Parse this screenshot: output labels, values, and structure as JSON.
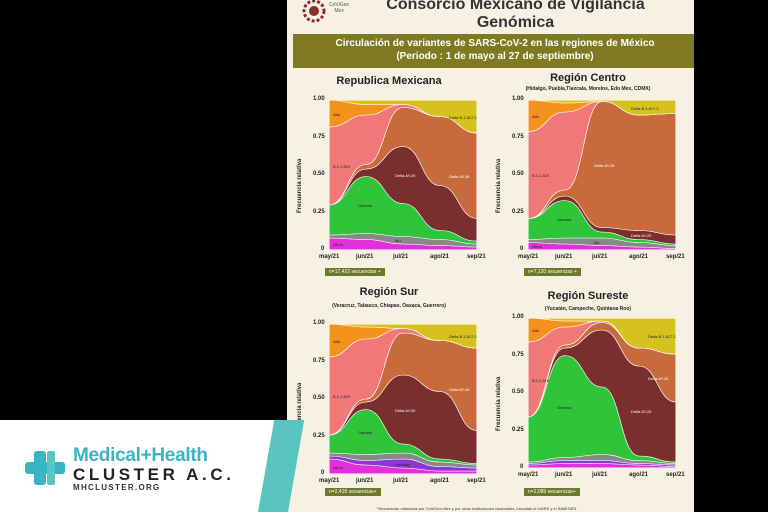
{
  "header": {
    "title_line1": "Consorcio Mexicano de Vigilancia",
    "title_line2": "Genómica",
    "logo_text": [
      "CoViGen",
      "Mex"
    ]
  },
  "subtitle": {
    "line1": "Circulación de variantes de SARS-CoV-2 en las regiones de México",
    "line2": "(Periodo : 1 de mayo al 27 de septiembre)"
  },
  "axis": {
    "ylabel": "Frecuencia relativa",
    "yticks": [
      "1.00",
      "0.75",
      "0.50",
      "0.25",
      "0"
    ],
    "xticks": [
      "may/21",
      "jun/21",
      "jul/21",
      "ago/21",
      "sep/21"
    ]
  },
  "panels": [
    {
      "title": "Republica Mexicana",
      "subtitle": "",
      "n": "n=17,422 secuencias +"
    },
    {
      "title": "Región Centro",
      "subtitle": "(Hidalgo, Puebla,Tlaxcala, Morelos, Edo Mex, CDMX)",
      "n": "n=7,120 secuencias +"
    },
    {
      "title": "Región Sur",
      "subtitle": "(Veracruz, Tabasco, Chiapas, Oaxaca, Guerrero)",
      "n": "n=2,418 secuencias+"
    },
    {
      "title": "Región Sureste",
      "subtitle": "(Yucatán, Campeche, Quintana Roo)",
      "n": "n=2,089 secuencias+"
    }
  ],
  "series_labels": {
    "alfa": "Alfa",
    "b11519": "B.1.1.519",
    "gamma": "Gamma",
    "mu": "Mu",
    "delta_ay20": "Delta AY.20",
    "delta_ay26": "Delta AY.26",
    "delta_b16172": "Delta B.1.617.2",
    "otros": "Otros",
    "lambda": "Lambda"
  },
  "footnote": "*Secuencias obtenidas por CoViGen-Mex y por otras Instituciones nacionales, incluidas el InDRE y el INMEGEN",
  "colors": {
    "otros": "#e22fd8",
    "mu": "#888888",
    "gamma": "#2fc43a",
    "delta_ay20": "#7a2e2e",
    "delta_ay26": "#c96a3c",
    "b11519": "#f07878",
    "alfa": "#f5921e",
    "delta_b16172": "#d6c21e",
    "lambda": "#8a37d6",
    "brand": "#3ab3c4"
  },
  "chart_data": [
    {
      "type": "area",
      "title": "Republica Mexicana",
      "x": [
        "may/21",
        "jun/21",
        "jul/21",
        "ago/21",
        "sep/21"
      ],
      "ylim": [
        0,
        1
      ],
      "series": [
        {
          "name": "Otros",
          "values": [
            0.08,
            0.07,
            0.04,
            0.03,
            0.02
          ]
        },
        {
          "name": "Mu",
          "values": [
            0.02,
            0.04,
            0.05,
            0.04,
            0.02
          ]
        },
        {
          "name": "Gamma",
          "values": [
            0.2,
            0.38,
            0.22,
            0.06,
            0.02
          ]
        },
        {
          "name": "Delta AY.20",
          "values": [
            0.0,
            0.05,
            0.38,
            0.3,
            0.15
          ]
        },
        {
          "name": "Delta AY.26",
          "values": [
            0.0,
            0.03,
            0.26,
            0.46,
            0.57
          ]
        },
        {
          "name": "B.1.1.519",
          "values": [
            0.52,
            0.33,
            0.02,
            0.0,
            0.0
          ]
        },
        {
          "name": "Alfa",
          "values": [
            0.18,
            0.07,
            0.0,
            0.0,
            0.0
          ]
        },
        {
          "name": "Delta B.1.617.2",
          "values": [
            0.0,
            0.03,
            0.03,
            0.11,
            0.22
          ]
        }
      ]
    },
    {
      "type": "area",
      "title": "Región Centro",
      "x": [
        "may/21",
        "jun/21",
        "jul/21",
        "ago/21",
        "sep/21"
      ],
      "ylim": [
        0,
        1
      ],
      "series": [
        {
          "name": "Otros",
          "values": [
            0.05,
            0.04,
            0.03,
            0.02,
            0.01
          ]
        },
        {
          "name": "Mu",
          "values": [
            0.02,
            0.04,
            0.05,
            0.03,
            0.02
          ]
        },
        {
          "name": "Gamma",
          "values": [
            0.14,
            0.25,
            0.04,
            0.02,
            0.01
          ]
        },
        {
          "name": "Delta AY.20",
          "values": [
            0.0,
            0.03,
            0.03,
            0.06,
            0.06
          ]
        },
        {
          "name": "Delta AY.26",
          "values": [
            0.0,
            0.04,
            0.84,
            0.77,
            0.81
          ]
        },
        {
          "name": "B.1.1.519",
          "values": [
            0.58,
            0.52,
            0.0,
            0.0,
            0.0
          ]
        },
        {
          "name": "Alfa",
          "values": [
            0.21,
            0.06,
            0.0,
            0.0,
            0.0
          ]
        },
        {
          "name": "Delta B.1.617.2",
          "values": [
            0.0,
            0.02,
            0.01,
            0.1,
            0.09
          ]
        }
      ]
    },
    {
      "type": "area",
      "title": "Región Sur",
      "x": [
        "may/21",
        "jun/21",
        "jul/21",
        "ago/21",
        "sep/21"
      ],
      "ylim": [
        0,
        1
      ],
      "series": [
        {
          "name": "Otros",
          "values": [
            0.1,
            0.06,
            0.04,
            0.02,
            0.02
          ]
        },
        {
          "name": "Lambda",
          "values": [
            0.02,
            0.03,
            0.06,
            0.03,
            0.02
          ]
        },
        {
          "name": "Mu",
          "values": [
            0.02,
            0.04,
            0.04,
            0.03,
            0.02
          ]
        },
        {
          "name": "Gamma",
          "values": [
            0.12,
            0.3,
            0.06,
            0.02,
            0.01
          ]
        },
        {
          "name": "Delta AY.20",
          "values": [
            0.0,
            0.05,
            0.46,
            0.45,
            0.22
          ]
        },
        {
          "name": "Delta AY.26",
          "values": [
            0.0,
            0.02,
            0.28,
            0.34,
            0.55
          ]
        },
        {
          "name": "B.1.1.519",
          "values": [
            0.52,
            0.4,
            0.03,
            0.0,
            0.0
          ]
        },
        {
          "name": "Alfa",
          "values": [
            0.22,
            0.08,
            0.0,
            0.0,
            0.0
          ]
        },
        {
          "name": "Delta B.1.617.2",
          "values": [
            0.0,
            0.02,
            0.03,
            0.11,
            0.16
          ]
        }
      ]
    },
    {
      "type": "area",
      "title": "Región Sureste",
      "x": [
        "may/21",
        "jun/21",
        "jul/21",
        "ago/21",
        "sep/21"
      ],
      "ylim": [
        0,
        1
      ],
      "series": [
        {
          "name": "Otros",
          "values": [
            0.02,
            0.03,
            0.03,
            0.02,
            0.01
          ]
        },
        {
          "name": "Lambda",
          "values": [
            0.01,
            0.02,
            0.02,
            0.01,
            0.01
          ]
        },
        {
          "name": "Mu",
          "values": [
            0.01,
            0.02,
            0.04,
            0.02,
            0.01
          ]
        },
        {
          "name": "Gamma",
          "values": [
            0.3,
            0.68,
            0.45,
            0.03,
            0.01
          ]
        },
        {
          "name": "Delta AY.20",
          "values": [
            0.0,
            0.05,
            0.38,
            0.6,
            0.4
          ]
        },
        {
          "name": "Delta AY.26",
          "values": [
            0.0,
            0.02,
            0.05,
            0.12,
            0.32
          ]
        },
        {
          "name": "B.1.1.519",
          "values": [
            0.5,
            0.12,
            0.01,
            0.0,
            0.0
          ]
        },
        {
          "name": "Alfa",
          "values": [
            0.16,
            0.04,
            0.0,
            0.0,
            0.0
          ]
        },
        {
          "name": "Delta B.1.617.2",
          "values": [
            0.0,
            0.02,
            0.02,
            0.2,
            0.24
          ]
        }
      ]
    }
  ],
  "brand_logo": {
    "line1": "Medical+Health",
    "line2": "CLUSTER A.C.",
    "line3": "MHCLUSTER.ORG"
  }
}
